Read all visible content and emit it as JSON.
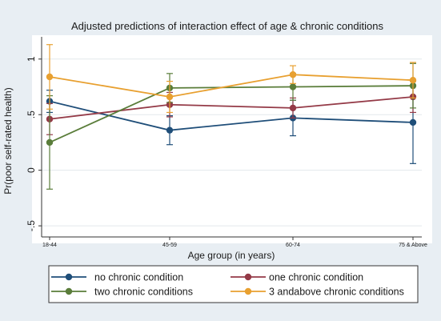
{
  "chart_data": {
    "type": "line",
    "title": "Adjusted predictions of interaction effect of age & chronic conditions",
    "xlabel": "Age group (in years)",
    "ylabel": "Pr(poor self-rated health)",
    "categories": [
      "18-44",
      "45-59",
      "60-74",
      "75 & Above"
    ],
    "yticks": [
      -0.5,
      0,
      0.5,
      1
    ],
    "ytick_labels": [
      "-.5",
      "0",
      ".5",
      "1"
    ],
    "ylim": [
      -0.6,
      1.2
    ],
    "grid": "horizontal",
    "legend_position": "bottom",
    "series": [
      {
        "name": "no chronic condition",
        "color": "#1f4e79",
        "values": [
          0.62,
          0.36,
          0.47,
          0.43
        ],
        "ci_low": [
          0.52,
          0.23,
          0.31,
          0.06
        ],
        "ci_high": [
          0.72,
          0.49,
          0.63,
          0.8
        ]
      },
      {
        "name": "one chronic condition",
        "color": "#943a47",
        "values": [
          0.46,
          0.59,
          0.56,
          0.66
        ],
        "ci_low": [
          0.32,
          0.48,
          0.47,
          0.52
        ],
        "ci_high": [
          0.6,
          0.7,
          0.65,
          0.8
        ]
      },
      {
        "name": "two chronic conditions",
        "color": "#5a7d3a",
        "values": [
          0.25,
          0.74,
          0.75,
          0.76
        ],
        "ci_low": [
          -0.17,
          0.61,
          0.63,
          0.56
        ],
        "ci_high": [
          0.67,
          0.87,
          0.87,
          0.96
        ]
      },
      {
        "name": "3 andabove chronic conditions",
        "color": "#e8a030",
        "values": [
          0.84,
          0.66,
          0.86,
          0.81
        ],
        "ci_low": [
          0.55,
          0.52,
          0.78,
          0.65
        ],
        "ci_high": [
          1.13,
          0.8,
          0.94,
          0.97
        ]
      }
    ]
  }
}
